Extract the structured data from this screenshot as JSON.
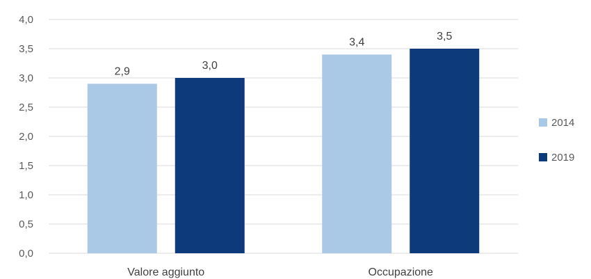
{
  "chart_data": {
    "type": "bar",
    "categories": [
      "Valore aggiunto",
      "Occupazione"
    ],
    "series": [
      {
        "name": "2014",
        "values": [
          2.9,
          3.4
        ],
        "color": "#a9c9e6"
      },
      {
        "name": "2019",
        "values": [
          3.0,
          3.5
        ],
        "color": "#0c3a7a"
      }
    ],
    "data_labels": [
      [
        "2,9",
        "3,4"
      ],
      [
        "3,0",
        "3,5"
      ]
    ],
    "y_ticks": [
      "0,0",
      "0,5",
      "1,0",
      "1,5",
      "2,0",
      "2,5",
      "3,0",
      "3,5",
      "4,0"
    ],
    "ylim": [
      0,
      4
    ],
    "grid": true,
    "legend_position": "right"
  }
}
